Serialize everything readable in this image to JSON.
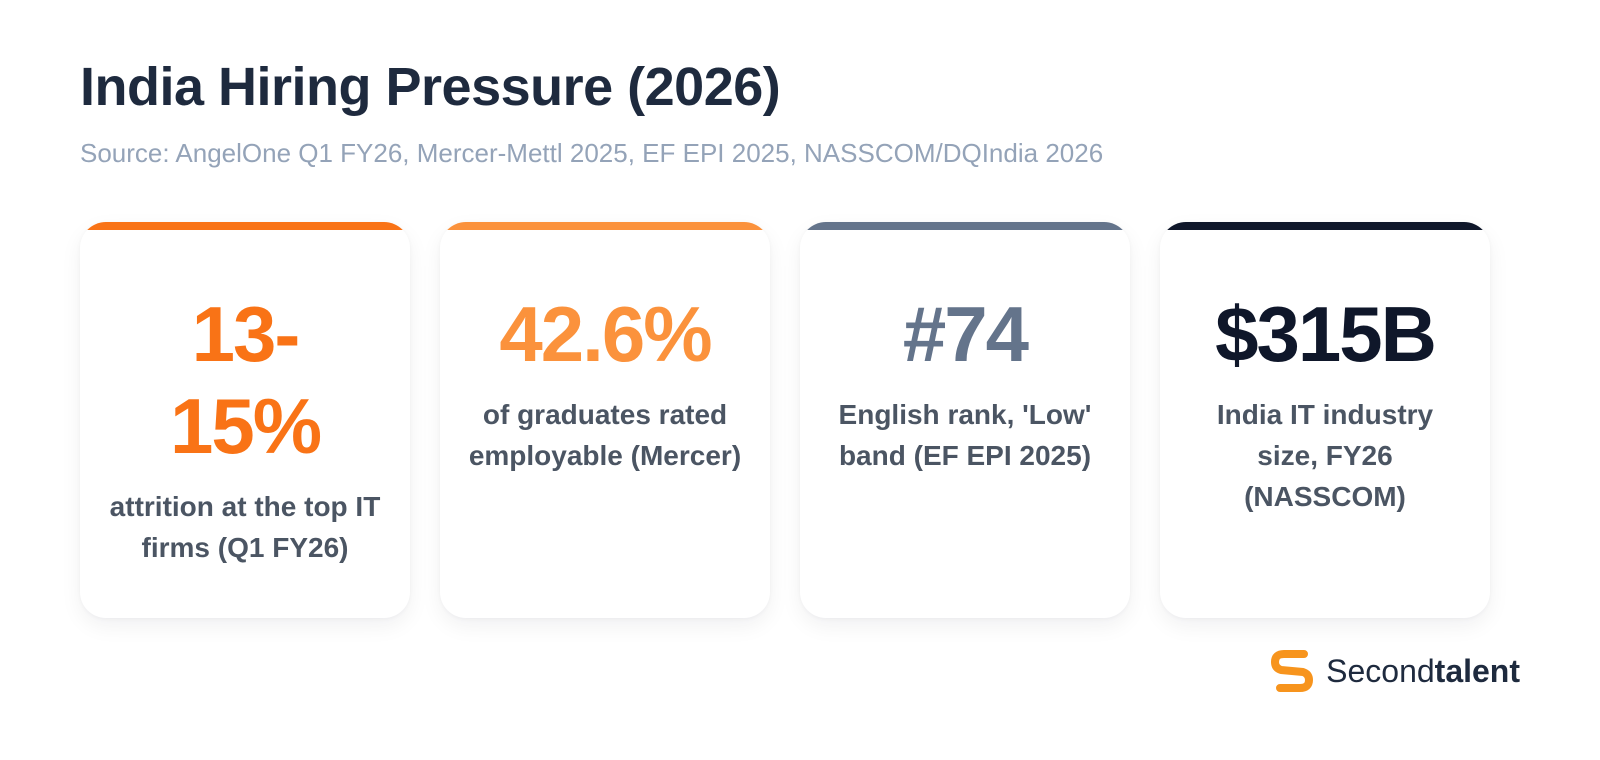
{
  "header": {
    "title": "India Hiring Pressure (2026)",
    "source": "Source: AngelOne Q1 FY26, Mercer-Mettl 2025, EF EPI 2025, NASSCOM/DQIndia 2026"
  },
  "cards": [
    {
      "value": "13-15%",
      "label": "attrition at the top IT firms (Q1 FY26)",
      "accent_color": "#f97316",
      "value_color": "#f97316"
    },
    {
      "value": "42.6%",
      "label": "of graduates rated employable (Mercer)",
      "accent_color": "#fb923c",
      "value_color": "#fb923c"
    },
    {
      "value": "#74",
      "label": "English rank, 'Low' band (EF EPI 2025)",
      "accent_color": "#64748b",
      "value_color": "#64748b"
    },
    {
      "value": "$315B",
      "label": "India IT industry size, FY26 (NASSCOM)",
      "accent_color": "#0f172a",
      "value_color": "#0f172a"
    }
  ],
  "brand": {
    "icon": "secondtalent-logo-icon",
    "name_regular": "Second",
    "name_bold": "talent",
    "color": "#f7941d"
  }
}
